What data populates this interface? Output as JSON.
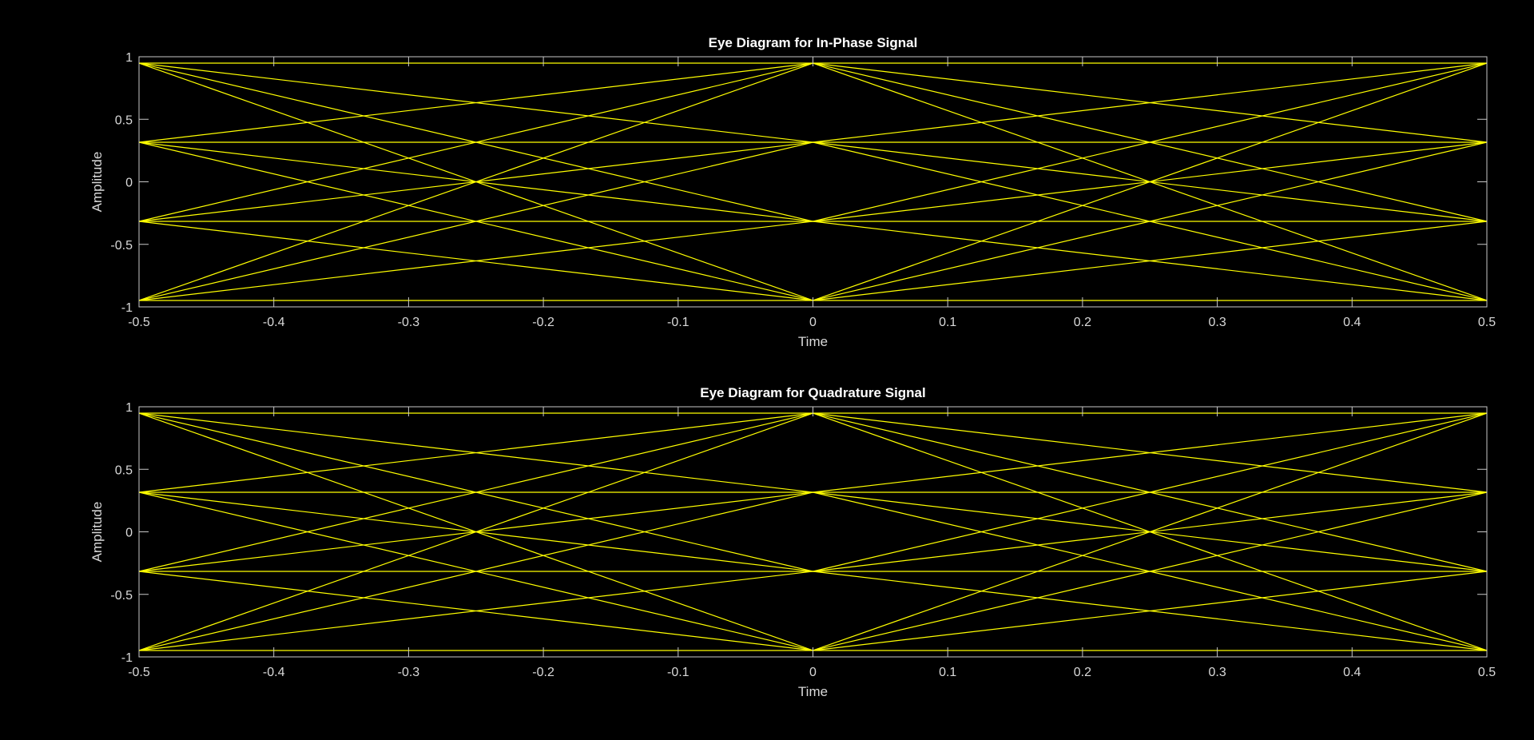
{
  "chart_data": [
    {
      "type": "line",
      "title": "Eye Diagram for In-Phase Signal",
      "xlabel": "Time",
      "ylabel": "Amplitude",
      "xlim": [
        -0.5,
        0.5
      ],
      "ylim": [
        -1,
        1
      ],
      "xticks": [
        -0.5,
        -0.4,
        -0.3,
        -0.2,
        -0.1,
        0,
        0.1,
        0.2,
        0.3,
        0.4,
        0.5
      ],
      "xtick_labels": [
        "-0.5",
        "-0.4",
        "-0.3",
        "-0.2",
        "-0.1",
        "0",
        "0.1",
        "0.2",
        "0.3",
        "0.4",
        "0.5"
      ],
      "yticks": [
        -1,
        -0.5,
        0,
        0.5,
        1
      ],
      "ytick_labels": [
        "-1",
        "-0.5",
        "0",
        "0.5",
        "1"
      ],
      "grid": false,
      "levels": [
        -0.9487,
        -0.3162,
        0.3162,
        0.9487
      ],
      "segments": [
        {
          "x": [
            -0.5,
            0
          ],
          "start_levels": "all",
          "end_levels": "all"
        },
        {
          "x": [
            0,
            0.5
          ],
          "start_levels": "all",
          "end_levels": "all"
        }
      ]
    },
    {
      "type": "line",
      "title": "Eye Diagram for Quadrature Signal",
      "xlabel": "Time",
      "ylabel": "Amplitude",
      "xlim": [
        -0.5,
        0.5
      ],
      "ylim": [
        -1,
        1
      ],
      "xticks": [
        -0.5,
        -0.4,
        -0.3,
        -0.2,
        -0.1,
        0,
        0.1,
        0.2,
        0.3,
        0.4,
        0.5
      ],
      "xtick_labels": [
        "-0.5",
        "-0.4",
        "-0.3",
        "-0.2",
        "-0.1",
        "0",
        "0.1",
        "0.2",
        "0.3",
        "0.4",
        "0.5"
      ],
      "yticks": [
        -1,
        -0.5,
        0,
        0.5,
        1
      ],
      "ytick_labels": [
        "-1",
        "-0.5",
        "0",
        "0.5",
        "1"
      ],
      "grid": false,
      "levels": [
        -0.9487,
        -0.3162,
        0.3162,
        0.9487
      ],
      "segments": [
        {
          "x": [
            -0.5,
            0
          ],
          "start_levels": "all",
          "end_levels": "all"
        },
        {
          "x": [
            0,
            0.5
          ],
          "start_levels": "all",
          "end_levels": "all"
        }
      ]
    }
  ],
  "colors": {
    "background": "#000000",
    "trace": "#ffff00",
    "axes": "#c8c8c8",
    "text": "#d9d9d9"
  }
}
